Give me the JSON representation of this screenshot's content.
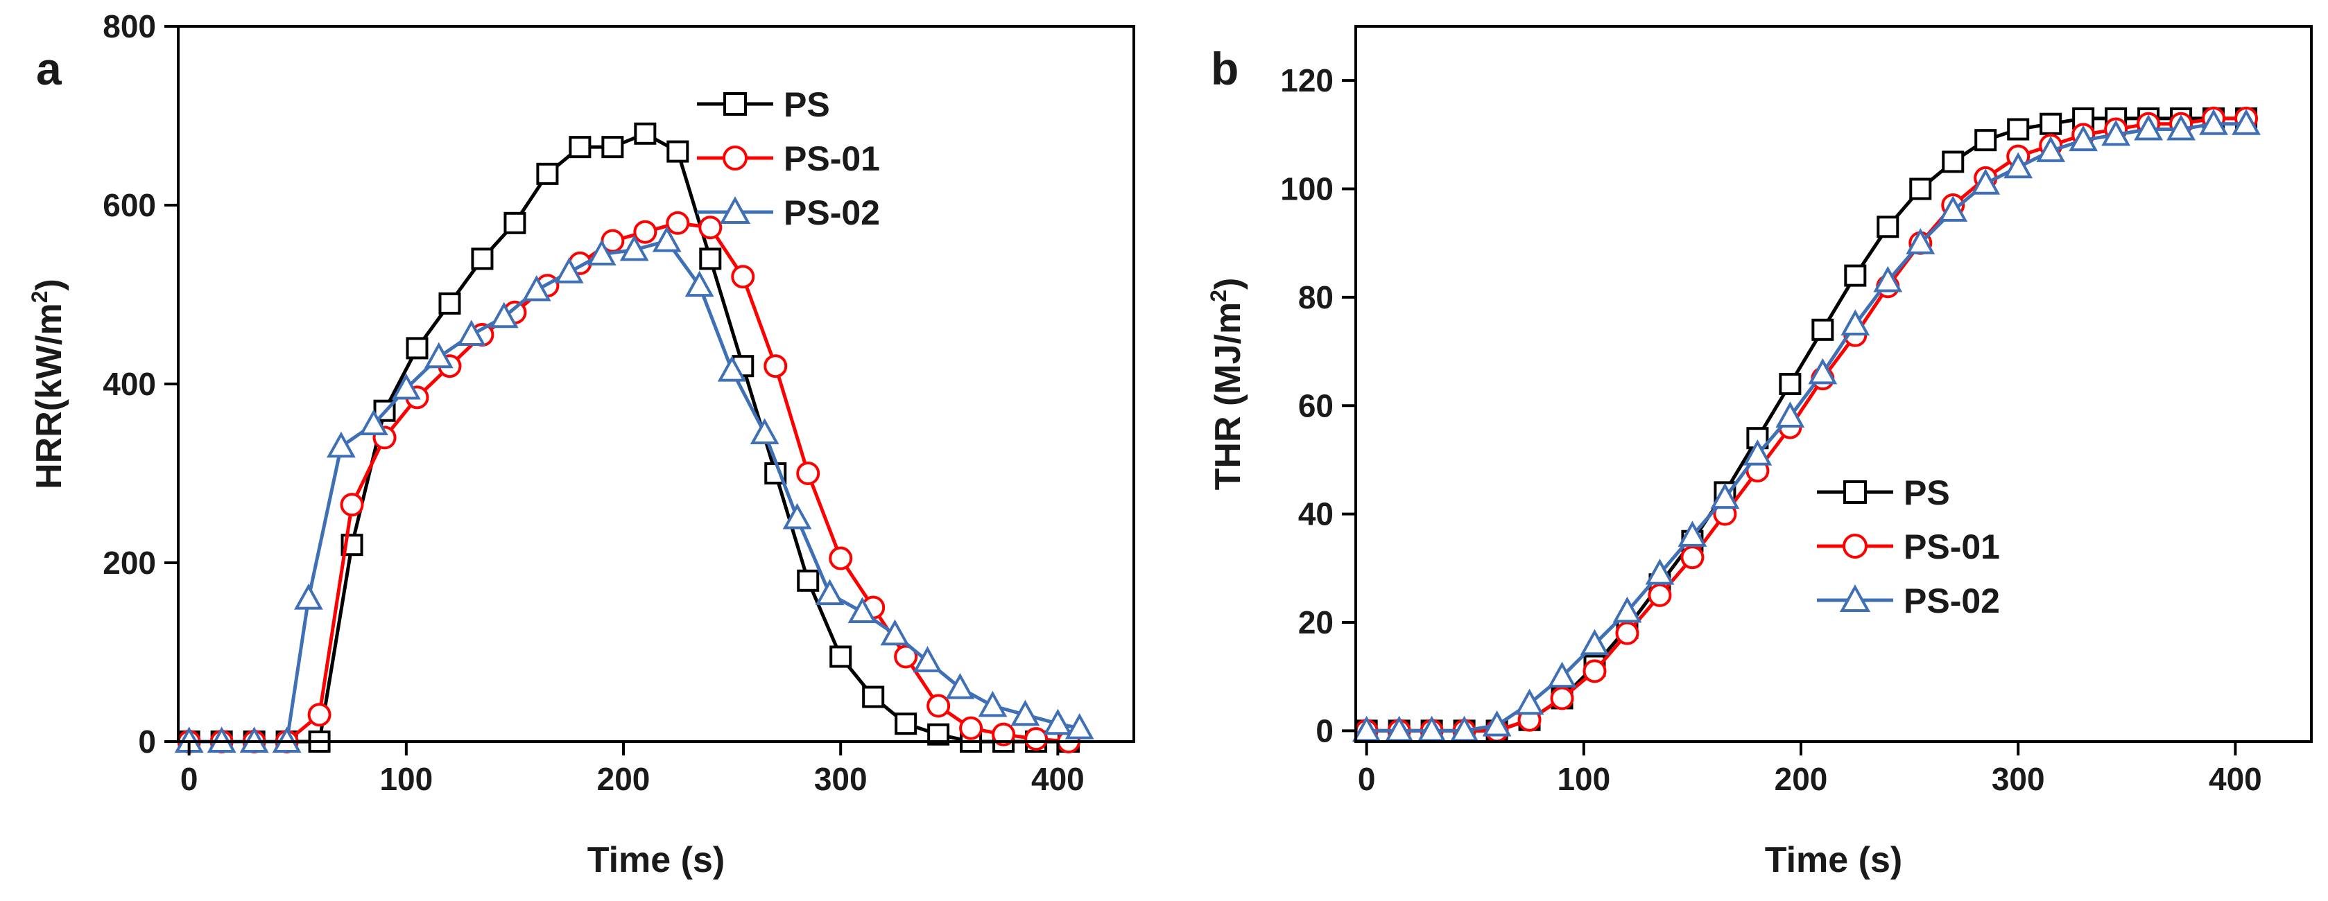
{
  "chart_data": [
    {
      "type": "line",
      "panel_label": "a",
      "xlabel": "Time (s)",
      "ylabel_main": "HRR(kW/m",
      "ylabel_sup": "2",
      "ylabel_close": ")",
      "xlim": [
        -5,
        435
      ],
      "ylim": [
        0,
        800
      ],
      "xticks": [
        0,
        100,
        200,
        300,
        400
      ],
      "yticks": [
        0,
        200,
        400,
        600,
        800
      ],
      "legend_position": "top-right",
      "series": [
        {
          "name": "PS",
          "color": "#000000",
          "marker": "square",
          "x": [
            0,
            15,
            30,
            45,
            60,
            75,
            90,
            105,
            120,
            135,
            150,
            165,
            180,
            195,
            210,
            225,
            240,
            255,
            270,
            285,
            300,
            315,
            330,
            345,
            360,
            375,
            390,
            405
          ],
          "y": [
            0,
            0,
            0,
            0,
            0,
            220,
            370,
            440,
            490,
            540,
            580,
            635,
            665,
            665,
            680,
            660,
            540,
            420,
            300,
            180,
            95,
            50,
            20,
            8,
            0,
            0,
            0,
            0
          ]
        },
        {
          "name": "PS-01",
          "color": "#ff0000",
          "marker": "circle",
          "x": [
            0,
            15,
            30,
            45,
            60,
            75,
            90,
            105,
            120,
            135,
            150,
            165,
            180,
            195,
            210,
            225,
            240,
            255,
            270,
            285,
            300,
            315,
            330,
            345,
            360,
            375,
            390,
            405
          ],
          "y": [
            0,
            0,
            0,
            0,
            30,
            265,
            340,
            385,
            420,
            455,
            480,
            510,
            535,
            560,
            570,
            580,
            575,
            520,
            420,
            300,
            205,
            150,
            95,
            40,
            15,
            8,
            3,
            0
          ]
        },
        {
          "name": "PS-02",
          "color": "#3f6fb5",
          "marker": "triangle",
          "x": [
            0,
            15,
            30,
            45,
            55,
            70,
            85,
            100,
            115,
            130,
            145,
            160,
            175,
            190,
            205,
            220,
            235,
            250,
            265,
            280,
            295,
            310,
            325,
            340,
            355,
            370,
            385,
            400,
            410
          ],
          "y": [
            0,
            0,
            0,
            0,
            160,
            330,
            355,
            395,
            430,
            455,
            475,
            505,
            525,
            545,
            550,
            560,
            510,
            415,
            345,
            250,
            165,
            145,
            120,
            90,
            60,
            40,
            30,
            20,
            15
          ]
        }
      ]
    },
    {
      "type": "line",
      "panel_label": "b",
      "xlabel": "Time (s)",
      "ylabel_main": "THR (MJ/m",
      "ylabel_sup": "2",
      "ylabel_close": ")",
      "xlim": [
        -5,
        435
      ],
      "ylim": [
        -2,
        130
      ],
      "xticks": [
        0,
        100,
        200,
        300,
        400
      ],
      "yticks": [
        0,
        20,
        40,
        60,
        80,
        100,
        120
      ],
      "legend_position": "center-right",
      "series": [
        {
          "name": "PS",
          "color": "#000000",
          "marker": "square",
          "x": [
            0,
            15,
            30,
            45,
            60,
            75,
            90,
            105,
            120,
            135,
            150,
            165,
            180,
            195,
            210,
            225,
            240,
            255,
            270,
            285,
            300,
            315,
            330,
            345,
            360,
            375,
            390,
            405
          ],
          "y": [
            0,
            0,
            0,
            0,
            0,
            2,
            6,
            12,
            19,
            27,
            35,
            44,
            54,
            64,
            74,
            84,
            93,
            100,
            105,
            109,
            111,
            112,
            113,
            113,
            113,
            113,
            113,
            113
          ]
        },
        {
          "name": "PS-01",
          "color": "#ff0000",
          "marker": "circle",
          "x": [
            0,
            15,
            30,
            45,
            60,
            75,
            90,
            105,
            120,
            135,
            150,
            165,
            180,
            195,
            210,
            225,
            240,
            255,
            270,
            285,
            300,
            315,
            330,
            345,
            360,
            375,
            390,
            405
          ],
          "y": [
            0,
            0,
            0,
            0,
            0,
            2,
            6,
            11,
            18,
            25,
            32,
            40,
            48,
            56,
            65,
            73,
            82,
            90,
            97,
            102,
            106,
            108,
            110,
            111,
            112,
            112,
            113,
            113
          ]
        },
        {
          "name": "PS-02",
          "color": "#3f6fb5",
          "marker": "triangle",
          "x": [
            0,
            15,
            30,
            45,
            60,
            75,
            90,
            105,
            120,
            135,
            150,
            165,
            180,
            195,
            210,
            225,
            240,
            255,
            270,
            285,
            300,
            315,
            330,
            345,
            360,
            375,
            390,
            405
          ],
          "y": [
            0,
            0,
            0,
            0,
            1,
            5,
            10,
            16,
            22,
            29,
            36,
            43,
            51,
            58,
            66,
            75,
            83,
            90,
            96,
            101,
            104,
            107,
            109,
            110,
            111,
            111,
            112,
            112
          ]
        }
      ]
    }
  ]
}
